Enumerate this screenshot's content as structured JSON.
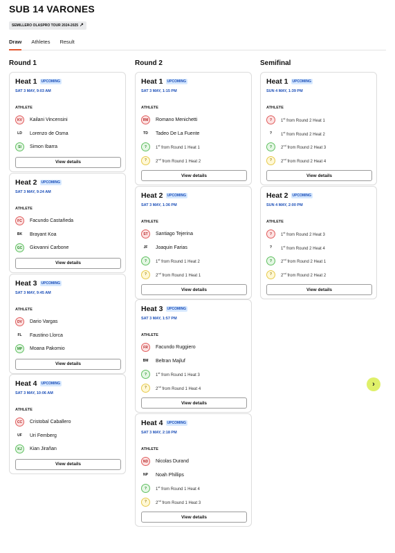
{
  "title": "SUB 14 VARONES",
  "tour": {
    "label": "SEMILLERO OLASPRO TOUR 2024-2025",
    "icon": "external-arrow-icon"
  },
  "tabs": [
    {
      "label": "Draw",
      "active": true
    },
    {
      "label": "Athletes"
    },
    {
      "label": "Result"
    }
  ],
  "athlete_header": "ATHLETE",
  "view_details": "View details",
  "columns": [
    {
      "title": "Round 1",
      "heats": [
        {
          "name": "Heat 1",
          "status": "UPCOMING",
          "date": "SAT 3 MAY, 9:03 AM",
          "rows": [
            {
              "avatar": "KV",
              "color": "red",
              "text": "Kailani Vincensini"
            },
            {
              "avatar": "LD",
              "color": "plain",
              "text": "Lorenzo de Osma"
            },
            {
              "avatar": "SI",
              "color": "green",
              "text": "Simon Ibarra"
            }
          ]
        },
        {
          "name": "Heat 2",
          "status": "UPCOMING",
          "date": "SAT 3 MAY, 9:24 AM",
          "rows": [
            {
              "avatar": "FC",
              "color": "red",
              "text": "Facundo Castañeda"
            },
            {
              "avatar": "BK",
              "color": "plain",
              "text": "Brayant Koa"
            },
            {
              "avatar": "GC",
              "color": "green",
              "text": "Giovanni Carbone"
            }
          ]
        },
        {
          "name": "Heat 3",
          "status": "UPCOMING",
          "date": "SAT 3 MAY, 9:45 AM",
          "rows": [
            {
              "avatar": "DV",
              "color": "red",
              "text": "Dario Vargas"
            },
            {
              "avatar": "FL",
              "color": "plain",
              "text": "Faustino Llorca"
            },
            {
              "avatar": "MP",
              "color": "green",
              "text": "Moana Pakomio"
            }
          ]
        },
        {
          "name": "Heat 4",
          "status": "UPCOMING",
          "date": "SAT 3 MAY, 10:06 AM",
          "rows": [
            {
              "avatar": "CC",
              "color": "red",
              "text": "Cristobal Caballero"
            },
            {
              "avatar": "UF",
              "color": "plain",
              "text": "Uri Femberg"
            },
            {
              "avatar": "KJ",
              "color": "green",
              "text": "Kian Jirañan"
            }
          ]
        }
      ]
    },
    {
      "title": "Round 2",
      "heats": [
        {
          "name": "Heat 1",
          "status": "UPCOMING",
          "date": "SAT 3 MAY, 1:15 PM",
          "rows": [
            {
              "avatar": "RM",
              "color": "red",
              "text": "Romano Menichetti"
            },
            {
              "avatar": "TD",
              "color": "plain",
              "text": "Tadeo De La Fuente"
            },
            {
              "avatar": "?",
              "color": "green",
              "ord": "1",
              "sup": "st",
              "text": " from Round 1 Heat 1"
            },
            {
              "avatar": "?",
              "color": "yellow",
              "ord": "2",
              "sup": "nd",
              "text": " from Round 1 Heat 2"
            }
          ]
        },
        {
          "name": "Heat 2",
          "status": "UPCOMING",
          "date": "SAT 3 MAY, 1:36 PM",
          "rows": [
            {
              "avatar": "ST",
              "color": "red",
              "text": "Santiago Tejerina"
            },
            {
              "avatar": "JF",
              "color": "plain",
              "text": "Joaquin Farias"
            },
            {
              "avatar": "?",
              "color": "green",
              "ord": "1",
              "sup": "st",
              "text": " from Round 1 Heat 2"
            },
            {
              "avatar": "?",
              "color": "yellow",
              "ord": "2",
              "sup": "nd",
              "text": " from Round 1 Heat 1"
            }
          ]
        },
        {
          "name": "Heat 3",
          "status": "UPCOMING",
          "date": "SAT 3 MAY, 1:57 PM",
          "rows": [
            {
              "avatar": "FR",
              "color": "red",
              "text": "Facundo Ruggiero"
            },
            {
              "avatar": "BM",
              "color": "plain",
              "text": "Beltran Majluf"
            },
            {
              "avatar": "?",
              "color": "green",
              "ord": "1",
              "sup": "st",
              "text": " from Round 1 Heat 3"
            },
            {
              "avatar": "?",
              "color": "yellow",
              "ord": "2",
              "sup": "nd",
              "text": " from Round 1 Heat 4"
            }
          ]
        },
        {
          "name": "Heat 4",
          "status": "UPCOMING",
          "date": "SAT 3 MAY, 2:18 PM",
          "rows": [
            {
              "avatar": "ND",
              "color": "red",
              "text": "Nicolas Durand"
            },
            {
              "avatar": "NP",
              "color": "plain",
              "text": "Noah Phillips"
            },
            {
              "avatar": "?",
              "color": "green",
              "ord": "1",
              "sup": "st",
              "text": " from Round 1 Heat 4"
            },
            {
              "avatar": "?",
              "color": "yellow",
              "ord": "2",
              "sup": "nd",
              "text": " from Round 1 Heat 3"
            }
          ]
        }
      ]
    },
    {
      "title": "Semifinal",
      "heats": [
        {
          "name": "Heat 1",
          "status": "UPCOMING",
          "date": "SUN 4 MAY, 1:39 PM",
          "rows": [
            {
              "avatar": "?",
              "color": "red",
              "ord": "1",
              "sup": "st",
              "text": " from Round 2 Heat 1"
            },
            {
              "avatar": "?",
              "color": "plain",
              "ord": "1",
              "sup": "st",
              "text": " from Round 2 Heat 2"
            },
            {
              "avatar": "?",
              "color": "green",
              "ord": "2",
              "sup": "nd",
              "text": " from Round 2 Heat 3"
            },
            {
              "avatar": "?",
              "color": "yellow",
              "ord": "2",
              "sup": "nd",
              "text": " from Round 2 Heat 4"
            }
          ]
        },
        {
          "name": "Heat 2",
          "status": "UPCOMING",
          "date": "SUN 4 MAY, 2:00 PM",
          "rows": [
            {
              "avatar": "?",
              "color": "red",
              "ord": "1",
              "sup": "st",
              "text": " from Round 2 Heat 3"
            },
            {
              "avatar": "?",
              "color": "plain",
              "ord": "1",
              "sup": "st",
              "text": " from Round 2 Heat 4"
            },
            {
              "avatar": "?",
              "color": "green",
              "ord": "2",
              "sup": "nd",
              "text": " from Round 2 Heat 1"
            },
            {
              "avatar": "?",
              "color": "yellow",
              "ord": "2",
              "sup": "nd",
              "text": " from Round 2 Heat 2"
            }
          ]
        }
      ]
    }
  ],
  "next_button": {
    "icon": "chevron-right-icon",
    "glyph": "›"
  },
  "colors": {
    "accent_tab": "#e4572e",
    "badge_text": "#1c4fb8",
    "badge_bg": "#d6e8ff",
    "next_button": "#dff06a"
  }
}
